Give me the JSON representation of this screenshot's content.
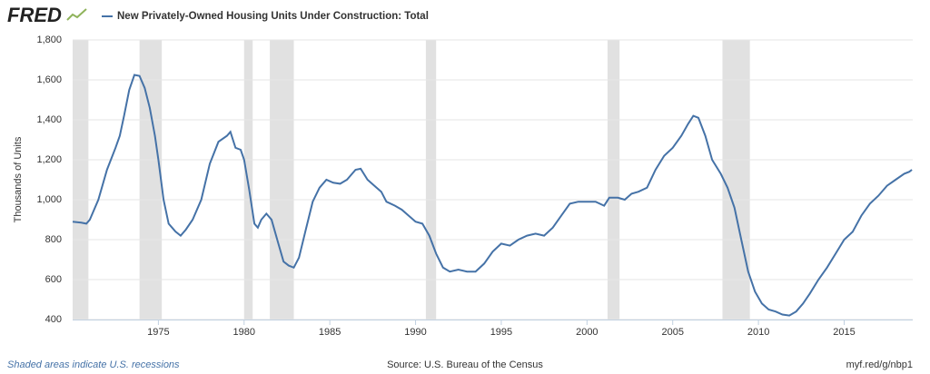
{
  "logo": "FRED",
  "chart_data": {
    "type": "line",
    "y_label": "Thousands of Units",
    "footer_note": "Shaded areas indicate U.S. recessions",
    "source": "Source: U.S. Bureau of the Census",
    "link": "myf.red/g/nbp1",
    "recession_color": "#e1e1e1",
    "recessions": [
      [
        1969.92,
        1970.92
      ],
      [
        1973.9,
        1975.2
      ],
      [
        1980.0,
        1980.5
      ],
      [
        1981.5,
        1982.9
      ],
      [
        1990.6,
        1991.2
      ],
      [
        2001.2,
        2001.9
      ],
      [
        2007.9,
        2009.5
      ]
    ],
    "x": [
      1970.0,
      1970.5,
      1970.8,
      1971.0,
      1971.5,
      1972.0,
      1972.5,
      1972.75,
      1973.0,
      1973.3,
      1973.6,
      1973.9,
      1974.2,
      1974.5,
      1974.8,
      1975.0,
      1975.3,
      1975.6,
      1976.0,
      1976.3,
      1976.6,
      1977.0,
      1977.5,
      1978.0,
      1978.5,
      1979.0,
      1979.2,
      1979.5,
      1979.8,
      1980.0,
      1980.3,
      1980.6,
      1980.8,
      1981.0,
      1981.3,
      1981.6,
      1982.0,
      1982.3,
      1982.6,
      1982.9,
      1983.2,
      1983.6,
      1984.0,
      1984.4,
      1984.8,
      1985.2,
      1985.6,
      1986.0,
      1986.5,
      1986.8,
      1987.2,
      1987.6,
      1988.0,
      1988.3,
      1988.8,
      1989.2,
      1989.6,
      1990.0,
      1990.4,
      1990.8,
      1991.2,
      1991.6,
      1992.0,
      1992.5,
      1993.0,
      1993.5,
      1994.0,
      1994.5,
      1995.0,
      1995.5,
      1996.0,
      1996.5,
      1997.0,
      1997.5,
      1998.0,
      1998.5,
      1999.0,
      1999.5,
      2000.0,
      2000.5,
      2001.0,
      2001.3,
      2001.8,
      2002.2,
      2002.6,
      2003.0,
      2003.5,
      2004.0,
      2004.5,
      2005.0,
      2005.5,
      2005.9,
      2006.2,
      2006.5,
      2006.9,
      2007.3,
      2007.8,
      2008.2,
      2008.6,
      2009.0,
      2009.4,
      2009.8,
      2010.2,
      2010.6,
      2011.0,
      2011.4,
      2011.8,
      2012.2,
      2012.6,
      2013.0,
      2013.5,
      2014.0,
      2014.5,
      2015.0,
      2015.5,
      2016.0,
      2016.5,
      2017.0,
      2017.5,
      2018.0,
      2018.5,
      2018.8,
      2018.95
    ],
    "series": [
      {
        "name": "New Privately-Owned Housing Units Under Construction: Total",
        "color": "#4572a7",
        "values": [
          890,
          885,
          880,
          900,
          1000,
          1150,
          1260,
          1320,
          1420,
          1550,
          1625,
          1620,
          1560,
          1460,
          1320,
          1200,
          1000,
          880,
          840,
          820,
          850,
          900,
          1000,
          1180,
          1290,
          1320,
          1340,
          1260,
          1250,
          1200,
          1050,
          880,
          860,
          900,
          930,
          900,
          780,
          690,
          670,
          660,
          710,
          850,
          990,
          1060,
          1100,
          1085,
          1080,
          1100,
          1150,
          1155,
          1100,
          1070,
          1040,
          990,
          970,
          950,
          920,
          890,
          880,
          820,
          730,
          660,
          640,
          650,
          640,
          640,
          680,
          740,
          780,
          770,
          800,
          820,
          830,
          820,
          860,
          920,
          980,
          990,
          990,
          990,
          970,
          1010,
          1010,
          1000,
          1030,
          1040,
          1060,
          1150,
          1220,
          1260,
          1320,
          1380,
          1420,
          1410,
          1320,
          1200,
          1130,
          1060,
          960,
          800,
          640,
          540,
          480,
          450,
          440,
          425,
          420,
          440,
          480,
          530,
          600,
          660,
          730,
          800,
          840,
          920,
          980,
          1020,
          1070,
          1100,
          1130,
          1140,
          1150
        ]
      }
    ],
    "xlim": [
      1970,
      2019
    ],
    "xticks": [
      1975,
      1980,
      1985,
      1990,
      1995,
      2000,
      2005,
      2010,
      2015
    ],
    "ylim": [
      400,
      1800
    ],
    "yticks": [
      400,
      600,
      800,
      {
        "value": 1000,
        "label": "1,000"
      },
      {
        "value": 1200,
        "label": "1,200"
      },
      {
        "value": 1400,
        "label": "1,400"
      },
      {
        "value": 1600,
        "label": "1,600"
      },
      {
        "value": 1800,
        "label": "1,800"
      }
    ],
    "grid": true
  }
}
